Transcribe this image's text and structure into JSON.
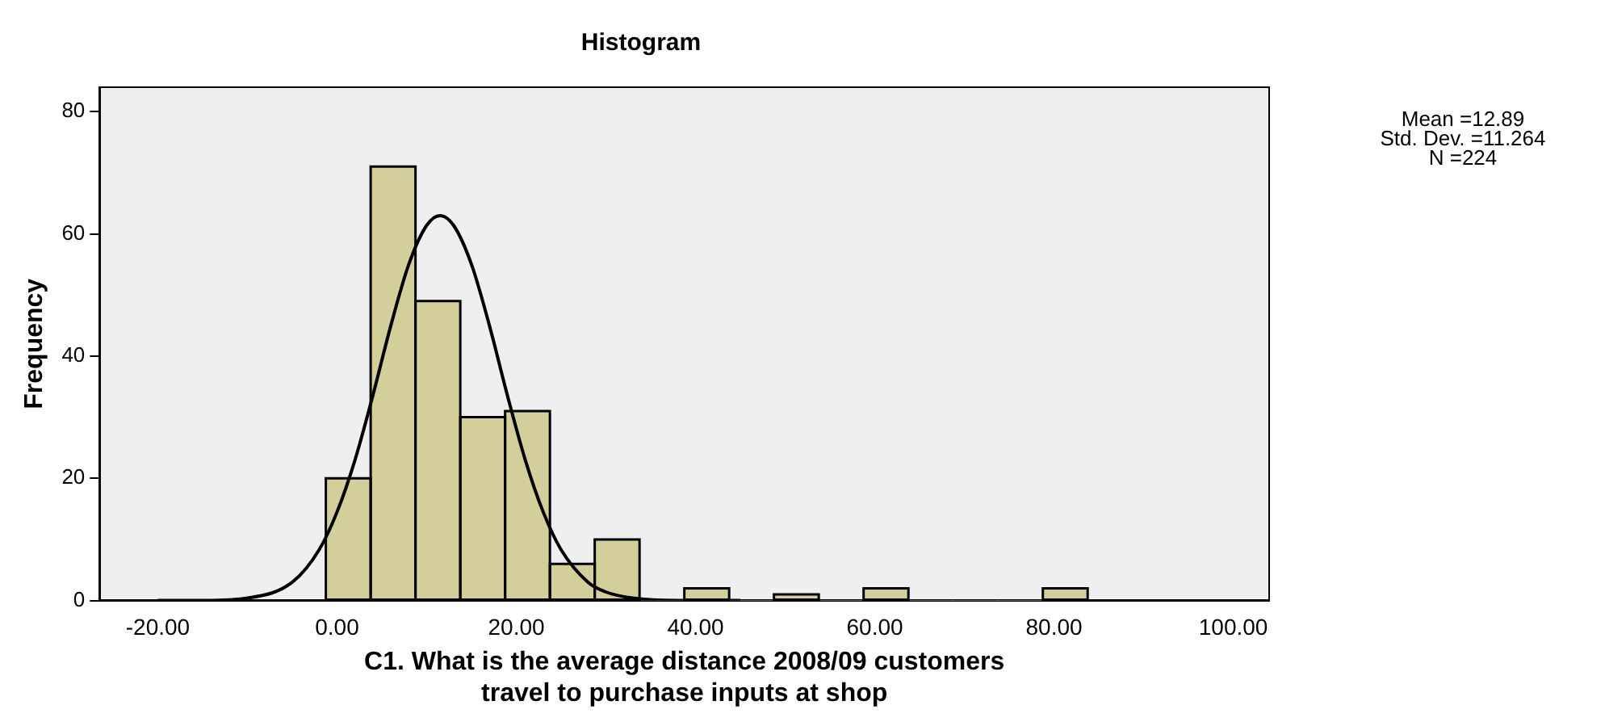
{
  "chart_data": {
    "type": "histogram",
    "title": "Histogram",
    "xlabel": "C1. What is the average distance 2008/09 customers\ntravel to purchase inputs at shop",
    "ylabel": "Frequency",
    "bins": [
      -1.25,
      3.75,
      8.75,
      13.75,
      18.75,
      23.75,
      28.75,
      33.75,
      38.75,
      43.75,
      48.75,
      53.75,
      58.75,
      63.75,
      68.75,
      73.75,
      78.75,
      83.75
    ],
    "values": [
      20,
      71,
      49,
      30,
      31,
      6,
      10,
      0,
      2,
      0,
      1,
      0,
      2,
      0,
      0,
      0,
      2
    ],
    "color": "#d3cf9a",
    "series": [
      {
        "type": "line",
        "color": "#000000",
        "x": [
          -20,
          -15,
          -10,
          -5,
          -2,
          0,
          2,
          4,
          6,
          8,
          10,
          11.5,
          13,
          15,
          17,
          19,
          21,
          23,
          25,
          28,
          30,
          33,
          38,
          45
        ],
        "values": [
          0,
          0,
          0.4,
          3,
          8.3,
          14.5,
          23,
          33.6,
          45,
          55,
          61.4,
          63,
          61.4,
          55,
          45,
          33.6,
          23,
          14.5,
          8.3,
          3,
          1.4,
          0.4,
          0,
          0
        ]
      }
    ],
    "xlim": [
      -26.5,
      104
    ],
    "xticks": [
      {
        "value": -20,
        "label": "-20.00"
      },
      {
        "value": 0,
        "label": "0.00"
      },
      {
        "value": 20,
        "label": "20.00"
      },
      {
        "value": 40,
        "label": "40.00"
      },
      {
        "value": 60,
        "label": "60.00"
      },
      {
        "value": 80,
        "label": "80.00"
      },
      {
        "value": 100,
        "label": "100.00"
      }
    ],
    "ylim": [
      0,
      84
    ],
    "yticks": [
      0,
      20,
      40,
      60,
      80
    ],
    "grid": false,
    "legend": false,
    "annotations": [
      "Mean =12.89",
      "Std. Dev. =11.264",
      "N =224"
    ]
  }
}
